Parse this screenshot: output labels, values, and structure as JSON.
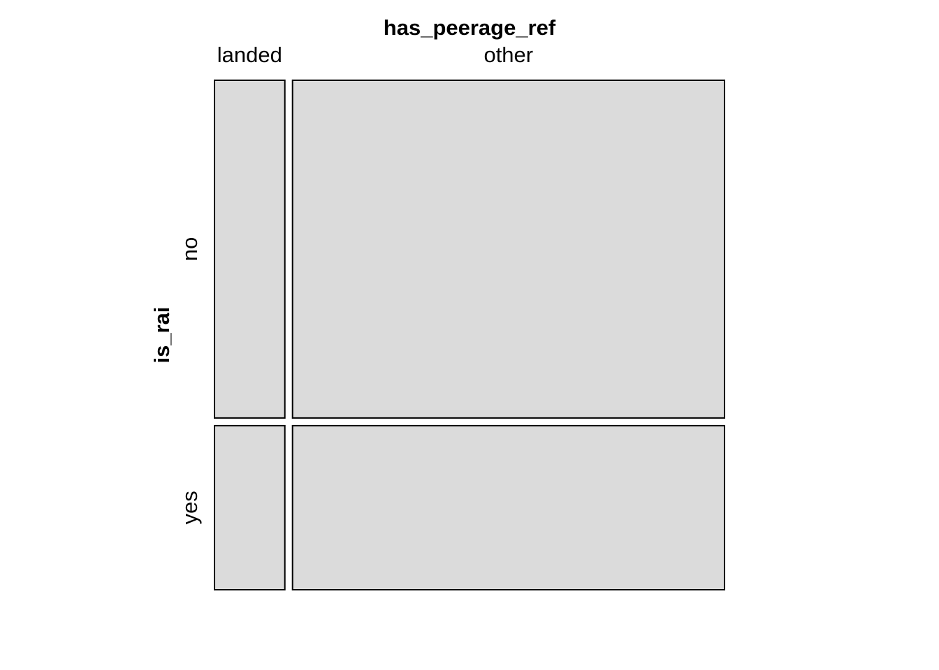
{
  "chart_data": {
    "type": "mosaic",
    "column_variable": "has_peerage_ref",
    "row_variable": "is_rai",
    "column_levels": [
      "landed",
      "other"
    ],
    "row_levels": [
      "no",
      "yes"
    ],
    "column_proportions": [
      0.14,
      0.86
    ],
    "row_proportions_within_column": [
      [
        0.673,
        0.327
      ],
      [
        0.673,
        0.327
      ]
    ],
    "tile_fill": "#dbdbdb",
    "tile_stroke": "#000000"
  }
}
